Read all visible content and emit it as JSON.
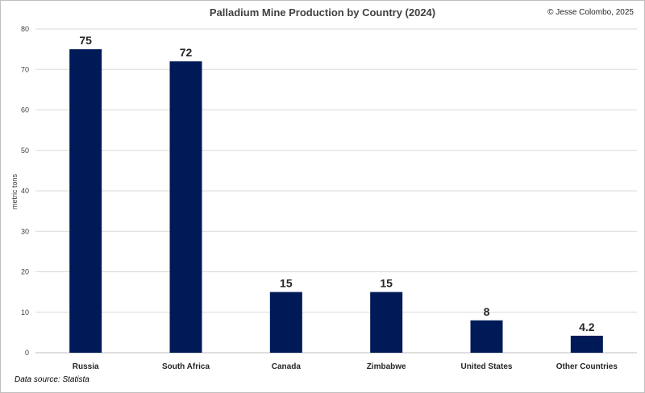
{
  "header": {
    "title": "Palladium Mine Production by Country (2024)",
    "credit": "© Jesse Colombo, 2025"
  },
  "footer": {
    "source": "Data source: Statista"
  },
  "colors": {
    "bar": "#001a57",
    "grid": "#d9d9d9"
  },
  "chart_data": {
    "type": "bar",
    "title": "Palladium Mine Production by Country (2024)",
    "xlabel": "",
    "ylabel": "metric tons",
    "ylim": [
      0,
      80
    ],
    "yticks": [
      0,
      10,
      20,
      30,
      40,
      50,
      60,
      70,
      80
    ],
    "grid": true,
    "categories": [
      "Russia",
      "South Africa",
      "Canada",
      "Zimbabwe",
      "United States",
      "Other Countries"
    ],
    "values": [
      75,
      72,
      15,
      15,
      8,
      4.2
    ],
    "data_labels": [
      "75",
      "72",
      "15",
      "15",
      "8",
      "4.2"
    ]
  }
}
